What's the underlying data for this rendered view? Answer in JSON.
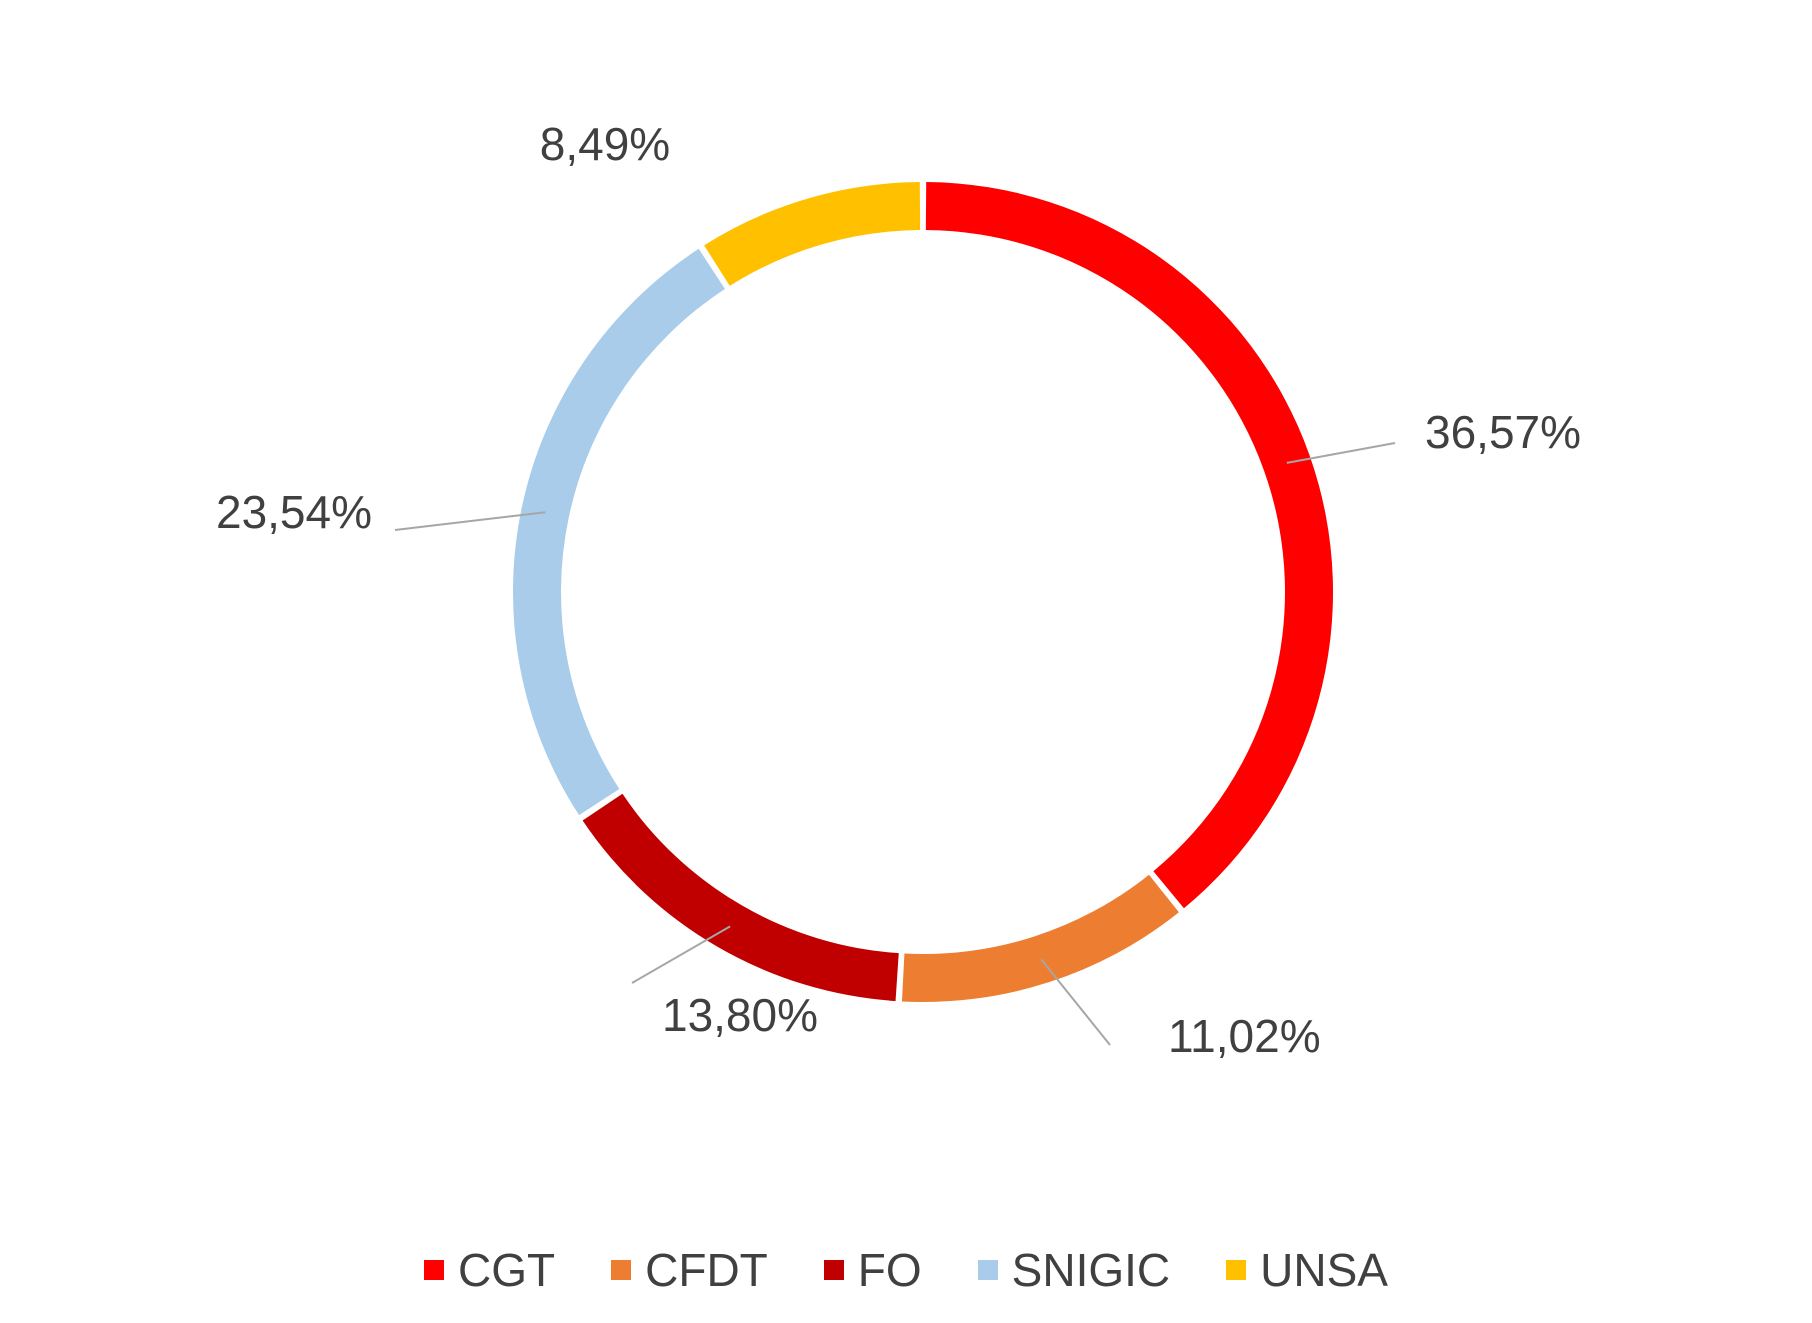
{
  "chart_data": {
    "type": "pie",
    "variant": "donut",
    "title": "",
    "categories": [
      "CGT",
      "CFDT",
      "FO",
      "SNIGIC",
      "UNSA"
    ],
    "values": [
      36.57,
      11.02,
      13.8,
      23.54,
      8.49
    ],
    "data_labels": [
      "36,57%",
      "11,02%",
      "13,80%",
      "23,54%",
      "8,49%"
    ],
    "colors": [
      "#FF0000",
      "#ED7D31",
      "#C00000",
      "#A9CCEB",
      "#FFC000"
    ],
    "legend": {
      "position": "bottom",
      "entries": [
        "CGT",
        "CFDT",
        "FO",
        "SNIGIC",
        "UNSA"
      ]
    }
  }
}
